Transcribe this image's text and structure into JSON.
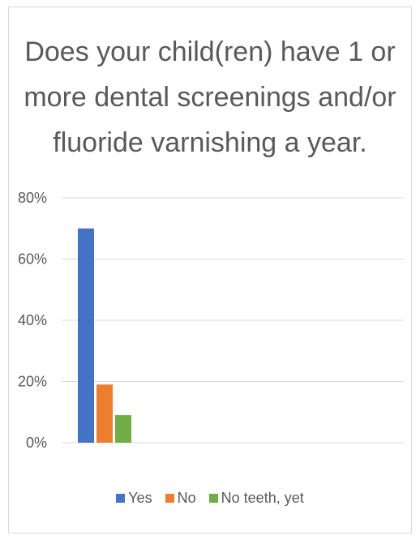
{
  "chart_data": {
    "type": "bar",
    "title": "Does your child(ren) have 1 or more dental screenings and/or fluoride varnishing a year.",
    "categories": [
      ""
    ],
    "series": [
      {
        "name": "Yes",
        "values": [
          70
        ],
        "color": "#4472c4"
      },
      {
        "name": "No",
        "values": [
          19
        ],
        "color": "#ed7d31"
      },
      {
        "name": "No teeth, yet",
        "values": [
          9
        ],
        "color": "#70ad47"
      }
    ],
    "ylim": [
      0,
      80
    ],
    "yticks": [
      0,
      20,
      40,
      60,
      80
    ],
    "ytick_labels": [
      "0%",
      "20%",
      "40%",
      "60%",
      "80%"
    ],
    "grid": true,
    "legend_position": "bottom"
  }
}
